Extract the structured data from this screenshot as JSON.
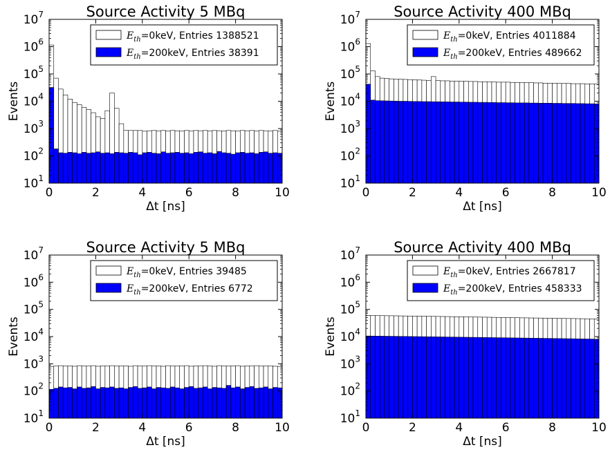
{
  "chart_data": [
    {
      "type": "bar",
      "title": "Source Activity 5 MBq",
      "xlabel": "Δt [ns]",
      "ylabel": "Events",
      "xlim": [
        0,
        10
      ],
      "ylim": [
        10,
        10000000
      ],
      "yscale": "log",
      "x_ticks": [
        "0",
        "2",
        "4",
        "6",
        "8",
        "10"
      ],
      "y_ticks": [
        "10^1",
        "10^2",
        "10^3",
        "10^4",
        "10^5",
        "10^6",
        "10^7"
      ],
      "legend_position": "top-right",
      "bin_width": 0.2,
      "series": [
        {
          "name": "E_th=0keV, Entries 1388521",
          "legend_math": "E",
          "legend_sub": "th",
          "legend_rest": "=0keV, Entries 1388521",
          "color": "#ffffff",
          "values": [
            1150000,
            70000,
            28000,
            17000,
            12000,
            9000,
            7500,
            6000,
            5000,
            3800,
            2700,
            2300,
            4500,
            20000,
            5500,
            1500,
            850,
            850,
            850,
            850,
            800,
            830,
            850,
            820,
            850,
            820,
            850,
            830,
            820,
            850,
            820,
            850,
            830,
            850,
            820,
            850,
            830,
            820,
            850,
            830,
            820,
            850,
            830,
            850,
            820,
            850,
            830,
            820,
            850,
            800
          ]
        },
        {
          "name": "E_th=200keV, Entries 38391",
          "legend_math": "E",
          "legend_sub": "th",
          "legend_rest": "=200keV, Entries 38391",
          "color": "#0000ff",
          "values": [
            32000,
            180,
            130,
            125,
            135,
            130,
            120,
            135,
            125,
            130,
            140,
            125,
            130,
            120,
            135,
            130,
            125,
            135,
            130,
            110,
            130,
            135,
            125,
            120,
            140,
            125,
            130,
            135,
            125,
            130,
            120,
            135,
            140,
            125,
            130,
            120,
            145,
            130,
            125,
            115,
            130,
            135,
            125,
            130,
            120,
            135,
            140,
            125,
            130,
            125
          ]
        }
      ]
    },
    {
      "type": "bar",
      "title": "Source Activity 400 MBq",
      "xlabel": "Δt [ns]",
      "ylabel": "Events",
      "xlim": [
        0,
        10
      ],
      "ylim": [
        10,
        10000000
      ],
      "yscale": "log",
      "x_ticks": [
        "0",
        "2",
        "4",
        "6",
        "8",
        "10"
      ],
      "y_ticks": [
        "10^1",
        "10^2",
        "10^3",
        "10^4",
        "10^5",
        "10^6",
        "10^7"
      ],
      "legend_position": "top-right",
      "bin_width": 0.2,
      "series": [
        {
          "name": "E_th=0keV, Entries 4011884",
          "legend_math": "E",
          "legend_sub": "th",
          "legend_rest": "=0keV, Entries 4011884",
          "color": "#ffffff",
          "values": [
            1300000,
            130000,
            80000,
            70000,
            68000,
            66000,
            65000,
            64000,
            63000,
            62000,
            61000,
            60000,
            59000,
            58000,
            80000,
            57000,
            56000,
            56000,
            55000,
            55000,
            54000,
            54000,
            53000,
            53000,
            52000,
            52000,
            51000,
            51000,
            50000,
            50000,
            50000,
            49000,
            49000,
            48000,
            48000,
            48000,
            47000,
            47000,
            46000,
            46000,
            46000,
            45000,
            45000,
            45000,
            44000,
            44000,
            44000,
            43000,
            43000,
            43000
          ]
        },
        {
          "name": "E_th=200keV, Entries 489662",
          "legend_math": "E",
          "legend_sub": "th",
          "legend_rest": "=200keV, Entries 489662",
          "color": "#0000ff",
          "values": [
            42000,
            11000,
            10500,
            10400,
            10300,
            10200,
            10100,
            10000,
            10000,
            9900,
            9800,
            9800,
            9700,
            9700,
            9600,
            9600,
            9500,
            9500,
            9400,
            9400,
            9300,
            9300,
            9200,
            9200,
            9100,
            9100,
            9000,
            9000,
            8900,
            8900,
            8800,
            8800,
            8700,
            8700,
            8700,
            8600,
            8600,
            8500,
            8500,
            8500,
            8400,
            8400,
            8300,
            8300,
            8300,
            8200,
            8200,
            8100,
            8100,
            8000
          ]
        }
      ]
    },
    {
      "type": "bar",
      "title": "Source Activity 5 MBq",
      "xlabel": "Δt [ns]",
      "ylabel": "Events",
      "xlim": [
        0,
        10
      ],
      "ylim": [
        10,
        10000000
      ],
      "yscale": "log",
      "x_ticks": [
        "0",
        "2",
        "4",
        "6",
        "8",
        "10"
      ],
      "y_ticks": [
        "10^1",
        "10^2",
        "10^3",
        "10^4",
        "10^5",
        "10^6",
        "10^7"
      ],
      "legend_position": "top-right",
      "bin_width": 0.2,
      "series": [
        {
          "name": "E_th=0keV, Entries 39485",
          "legend_math": "E",
          "legend_sub": "th",
          "legend_rest": "=0keV, Entries 39485",
          "color": "#ffffff",
          "values": [
            800,
            830,
            850,
            820,
            840,
            810,
            850,
            830,
            820,
            850,
            810,
            840,
            830,
            850,
            820,
            840,
            830,
            810,
            850,
            830,
            820,
            850,
            830,
            840,
            810,
            850,
            820,
            840,
            830,
            850,
            810,
            840,
            820,
            850,
            830,
            810,
            850,
            830,
            840,
            820,
            850,
            810,
            840,
            830,
            850,
            820,
            830,
            840,
            810,
            800
          ]
        },
        {
          "name": "E_th=200keV, Entries 6772",
          "legend_math": "E",
          "legend_sub": "th",
          "legend_rest": "=200keV, Entries 6772",
          "color": "#0000ff",
          "values": [
            115,
            125,
            140,
            130,
            135,
            120,
            140,
            125,
            130,
            145,
            120,
            135,
            130,
            140,
            125,
            130,
            120,
            135,
            145,
            125,
            130,
            140,
            120,
            135,
            130,
            125,
            140,
            130,
            120,
            135,
            145,
            125,
            130,
            140,
            120,
            135,
            130,
            125,
            160,
            130,
            140,
            120,
            135,
            145,
            125,
            130,
            140,
            120,
            135,
            130
          ]
        }
      ]
    },
    {
      "type": "bar",
      "title": "Source Activity 400 MBq",
      "xlabel": "Δt [ns]",
      "ylabel": "Events",
      "xlim": [
        0,
        10
      ],
      "ylim": [
        10,
        10000000
      ],
      "yscale": "log",
      "x_ticks": [
        "0",
        "2",
        "4",
        "6",
        "8",
        "10"
      ],
      "y_ticks": [
        "10^1",
        "10^2",
        "10^3",
        "10^4",
        "10^5",
        "10^6",
        "10^7"
      ],
      "legend_position": "top-right",
      "bin_width": 0.2,
      "series": [
        {
          "name": "E_th=0keV, Entries 2667817",
          "legend_math": "E",
          "legend_sub": "th",
          "legend_rest": "=0keV, Entries 2667817",
          "color": "#ffffff",
          "values": [
            60000,
            59500,
            59000,
            58800,
            58500,
            58200,
            58000,
            57600,
            57300,
            57000,
            56700,
            56400,
            56000,
            55700,
            55400,
            55000,
            54700,
            54400,
            54000,
            53700,
            53400,
            53000,
            52700,
            52400,
            52000,
            51700,
            51400,
            51000,
            50700,
            50400,
            50000,
            49700,
            49400,
            49000,
            48800,
            48500,
            48200,
            48000,
            47700,
            47400,
            47100,
            46800,
            46500,
            46200,
            46000,
            45700,
            45400,
            45100,
            44800,
            44500
          ]
        },
        {
          "name": "E_th=200keV, Entries 458333",
          "legend_math": "E",
          "legend_sub": "th",
          "legend_rest": "=200keV, Entries 458333",
          "color": "#0000ff",
          "values": [
            10500,
            10450,
            10400,
            10350,
            10300,
            10250,
            10200,
            10150,
            10100,
            10050,
            10000,
            9950,
            9900,
            9850,
            9800,
            9750,
            9700,
            9650,
            9600,
            9550,
            9500,
            9450,
            9400,
            9350,
            9300,
            9250,
            9200,
            9150,
            9100,
            9050,
            9000,
            8950,
            8900,
            8850,
            8800,
            8750,
            8700,
            8650,
            8600,
            8550,
            8500,
            8450,
            8400,
            8350,
            8300,
            8250,
            8200,
            8150,
            8100,
            8000
          ]
        }
      ]
    }
  ]
}
